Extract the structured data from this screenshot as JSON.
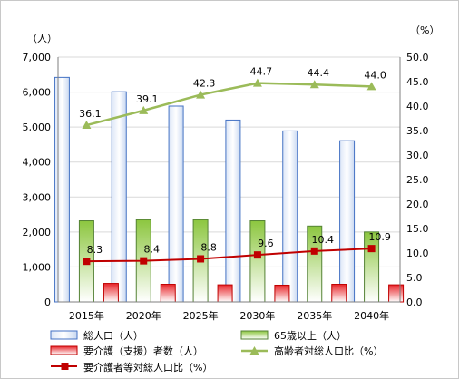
{
  "chart_data": {
    "type": "bar",
    "categories": [
      "2015年",
      "2020年",
      "2025年",
      "2030年",
      "2035年",
      "2040年"
    ],
    "left_axis": {
      "unit": "（人）",
      "ylim": [
        0,
        7000
      ],
      "ticks": [
        "0",
        "1,000",
        "2,000",
        "3,000",
        "4,000",
        "5,000",
        "6,000",
        "7,000"
      ]
    },
    "right_axis": {
      "unit": "（%）",
      "ylim": [
        0,
        50
      ],
      "ticks": [
        "0.0",
        "5.0",
        "10.0",
        "15.0",
        "20.0",
        "25.0",
        "30.0",
        "35.0",
        "40.0",
        "45.0",
        "50.0"
      ]
    },
    "series": [
      {
        "name": "総人口（人）",
        "kind": "bar",
        "axis": "left",
        "color": "#4472c4",
        "values": [
          6420,
          6010,
          5600,
          5200,
          4890,
          4610
        ]
      },
      {
        "name": "65歳以上（人）",
        "kind": "bar",
        "axis": "left",
        "color": "#70ad47",
        "values": [
          2320,
          2350,
          2350,
          2320,
          2170,
          2000
        ]
      },
      {
        "name": "要介護（支援）者数（人）",
        "kind": "bar",
        "axis": "left",
        "color": "#e03030",
        "values": [
          530,
          505,
          490,
          480,
          505,
          490
        ]
      },
      {
        "name": "高齢者対総人口比（%）",
        "kind": "line",
        "axis": "right",
        "color": "#9bbb59",
        "marker": "triangle",
        "values": [
          36.1,
          39.1,
          42.3,
          44.7,
          44.4,
          44.0
        ],
        "labels": [
          "36.1",
          "39.1",
          "42.3",
          "44.7",
          "44.4",
          "44.0"
        ]
      },
      {
        "name": "要介護者等対総人口比（%）",
        "kind": "line",
        "axis": "right",
        "color": "#c00000",
        "marker": "square",
        "values": [
          8.3,
          8.4,
          8.8,
          9.6,
          10.4,
          10.9
        ],
        "labels": [
          "8.3",
          "8.4",
          "8.8",
          "9.6",
          "10.4",
          "10.9"
        ]
      }
    ],
    "grid": true,
    "legend_position": "bottom"
  }
}
